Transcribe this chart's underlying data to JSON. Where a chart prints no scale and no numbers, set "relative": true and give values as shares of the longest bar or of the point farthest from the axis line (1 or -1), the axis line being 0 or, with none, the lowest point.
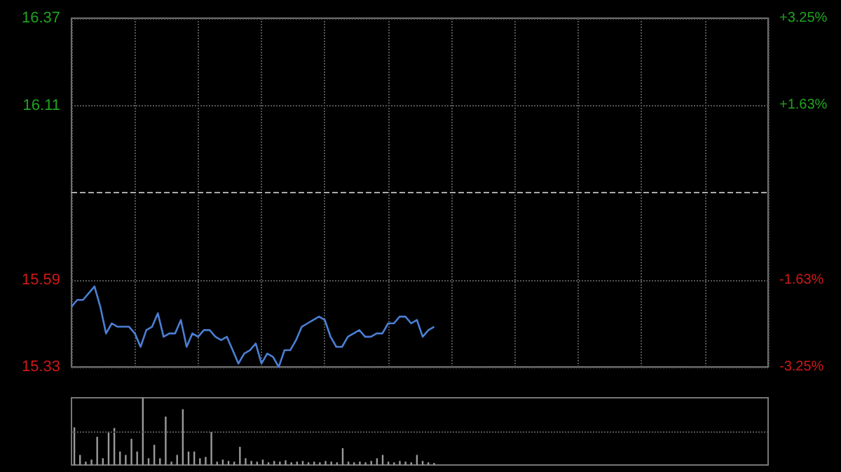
{
  "chart_data": [
    {
      "type": "line",
      "categories": [
        null,
        null,
        null,
        null,
        null,
        null,
        null,
        null,
        null,
        null,
        null,
        null,
        null,
        null,
        null,
        null,
        null,
        null,
        null,
        null,
        null,
        null,
        null,
        null,
        null,
        null,
        null,
        null,
        null,
        null,
        null,
        null,
        null,
        null,
        null,
        null,
        null,
        null,
        null,
        null,
        null,
        null,
        null,
        null,
        null,
        null,
        null,
        null,
        null,
        null,
        null,
        null,
        null,
        null,
        null,
        null,
        null,
        null,
        null,
        null,
        null,
        null,
        null,
        null,
        null,
        null,
        null,
        null,
        null,
        null,
        null,
        null,
        null,
        null,
        null,
        null,
        null,
        null,
        null,
        null,
        null,
        null,
        null,
        null,
        null,
        null,
        null,
        null,
        null,
        null,
        null,
        null,
        null,
        null,
        null,
        null,
        null,
        null,
        null,
        null,
        null,
        null,
        null,
        null,
        null,
        null,
        null,
        null,
        null,
        null,
        null,
        null,
        null,
        null,
        null,
        null,
        null,
        null,
        null,
        null,
        null,
        null
      ],
      "series": [
        {
          "color": "#4a7fd4",
          "values": [
            15.51,
            15.53,
            15.53,
            15.55,
            15.57,
            15.51,
            15.43,
            15.46,
            15.45,
            15.45,
            15.45,
            15.43,
            15.39,
            15.44,
            15.45,
            15.49,
            15.42,
            15.43,
            15.43,
            15.47,
            15.39,
            15.43,
            15.42,
            15.44,
            15.44,
            15.42,
            15.41,
            15.42,
            15.38,
            15.34,
            15.37,
            15.38,
            15.4,
            15.34,
            15.37,
            15.36,
            15.33,
            15.38,
            15.38,
            15.41,
            15.45,
            15.46,
            15.47,
            15.48,
            15.47,
            15.42,
            15.39,
            15.39,
            15.42,
            15.43,
            15.44,
            15.42,
            15.42,
            15.43,
            15.43,
            15.46,
            15.46,
            15.48,
            15.48,
            15.46,
            15.47,
            15.42,
            15.44,
            15.45,
            null,
            null,
            null,
            null,
            null,
            null,
            null,
            null,
            null,
            null,
            null,
            null,
            null,
            null,
            null,
            null,
            null,
            null,
            null,
            null,
            null,
            null,
            null,
            null,
            null,
            null,
            null,
            null,
            null,
            null,
            null,
            null,
            null,
            null,
            null,
            null,
            null,
            null,
            null,
            null,
            null,
            null,
            null,
            null,
            null,
            null,
            null,
            null,
            null,
            null,
            null,
            null,
            null,
            null,
            null,
            null,
            null,
            null
          ]
        }
      ],
      "ylim": [
        15.33,
        16.37
      ],
      "yticks": [
        15.33,
        15.59,
        16.11,
        16.37
      ],
      "y2lim": [
        -3.25,
        3.25
      ],
      "y2ticks": [
        {
          "value": -3.25,
          "label": "-3.25%"
        },
        {
          "value": -1.63,
          "label": "-1.63%"
        },
        {
          "value": 1.63,
          "label": "+1.63%"
        },
        {
          "value": 3.25,
          "label": "+3.25%"
        }
      ],
      "ref_lines": [
        {
          "axis": "y",
          "value": 15.85,
          "line_style": "dashed",
          "color": "#aaaaaa"
        }
      ],
      "grid": true,
      "line_style": "solid"
    },
    {
      "type": "bar",
      "relative": true,
      "ref_lines": [
        {
          "axis": "y",
          "value": 0.5,
          "line_style": "dotted",
          "color": "#555555"
        }
      ],
      "categories": [
        null,
        null,
        null,
        null,
        null,
        null,
        null,
        null,
        null,
        null,
        null,
        null,
        null,
        null,
        null,
        null,
        null,
        null,
        null,
        null,
        null,
        null,
        null,
        null,
        null,
        null,
        null,
        null,
        null,
        null,
        null,
        null,
        null,
        null,
        null,
        null,
        null,
        null,
        null,
        null,
        null,
        null,
        null,
        null,
        null,
        null,
        null,
        null,
        null,
        null,
        null,
        null,
        null,
        null,
        null,
        null,
        null,
        null,
        null,
        null,
        null,
        null,
        null,
        null,
        null,
        null,
        null,
        null,
        null,
        null,
        null,
        null,
        null,
        null,
        null,
        null,
        null,
        null,
        null,
        null,
        null,
        null,
        null,
        null,
        null,
        null,
        null,
        null,
        null,
        null,
        null,
        null,
        null,
        null,
        null,
        null,
        null,
        null,
        null,
        null,
        null,
        null,
        null,
        null,
        null,
        null,
        null,
        null,
        null,
        null,
        null,
        null,
        null,
        null,
        null,
        null,
        null,
        null,
        null,
        null,
        null,
        null
      ],
      "series": [
        {
          "color": "#9a9a9a",
          "values": [
            0.56,
            0.15,
            0.05,
            0.08,
            0.42,
            0.1,
            0.49,
            0.55,
            0.2,
            0.15,
            0.39,
            0.2,
            1,
            0.1,
            0.3,
            0.1,
            0.72,
            0.05,
            0.15,
            0.83,
            0.2,
            0.2,
            0.1,
            0.12,
            0.49,
            0.05,
            0.08,
            0.06,
            0.05,
            0.27,
            0.1,
            0.06,
            0.05,
            0.08,
            0.04,
            0.06,
            0.05,
            0.07,
            0.04,
            0.05,
            0.06,
            0.04,
            0.05,
            0.04,
            0.06,
            0.05,
            0.04,
            0.25,
            0.05,
            0.04,
            0.05,
            0.04,
            0.06,
            0.1,
            0.15,
            0.05,
            0.04,
            0.06,
            0.05,
            0.04,
            0.15,
            0.06,
            0.04,
            0.03,
            null,
            null,
            null,
            null,
            null,
            null,
            null,
            null,
            null,
            null,
            null,
            null,
            null,
            null,
            null,
            null,
            null,
            null,
            null,
            null,
            null,
            null,
            null,
            null,
            null,
            null,
            null,
            null,
            null,
            null,
            null,
            null,
            null,
            null,
            null,
            null,
            null,
            null,
            null,
            null,
            null,
            null,
            null,
            null,
            null,
            null,
            null,
            null,
            null,
            null,
            null,
            null,
            null,
            null,
            null,
            null,
            null,
            null
          ]
        }
      ]
    }
  ]
}
